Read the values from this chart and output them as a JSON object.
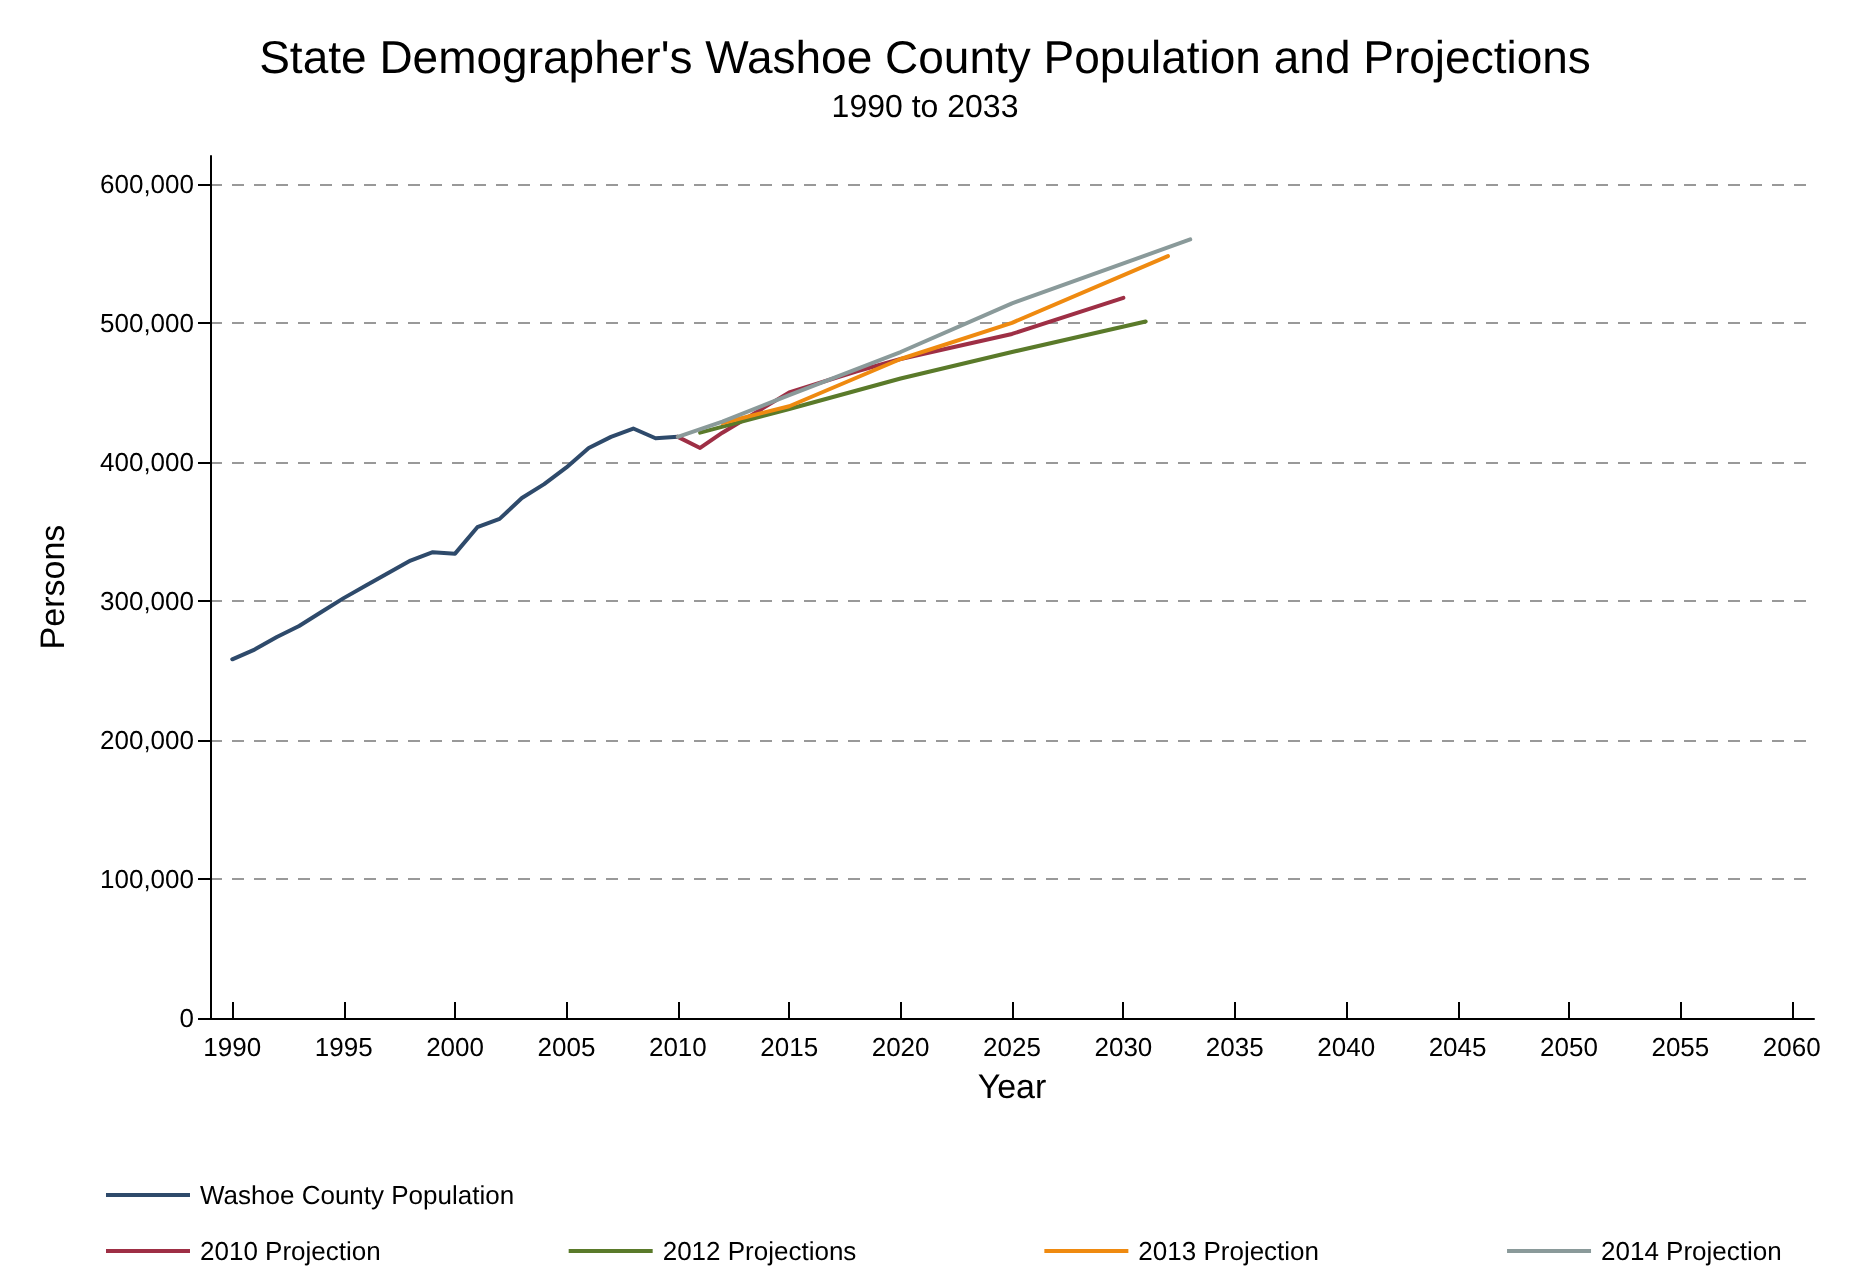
{
  "chart_data": {
    "type": "line",
    "title": "State Demographer's Washoe County Population and Projections",
    "subtitle": "1990 to 2033",
    "xlabel": "Year",
    "ylabel": "Persons",
    "xlim": [
      1989,
      2061
    ],
    "xticks": [
      1990,
      1995,
      2000,
      2005,
      2010,
      2015,
      2020,
      2025,
      2030,
      2035,
      2040,
      2045,
      2050,
      2055,
      2060
    ],
    "ylim": [
      0,
      620000
    ],
    "yticks": [
      {
        "value": 0,
        "label": "0"
      },
      {
        "value": 100000,
        "label": "100,000"
      },
      {
        "value": 200000,
        "label": "200,000"
      },
      {
        "value": 300000,
        "label": "300,000"
      },
      {
        "value": 400000,
        "label": "400,000"
      },
      {
        "value": 500000,
        "label": "500,000"
      },
      {
        "value": 600000,
        "label": "600,000"
      }
    ],
    "grid": "y",
    "legend": "bottom",
    "marker": "none",
    "line_style": "solid",
    "series": [
      {
        "name": "Washoe County Population",
        "color": "#2e4a6b",
        "x": [
          1990,
          1991,
          1992,
          1993,
          1994,
          1995,
          1996,
          1997,
          1998,
          1999,
          2000,
          2001,
          2002,
          2003,
          2004,
          2005,
          2006,
          2007,
          2008,
          2009,
          2010
        ],
        "values": [
          258000,
          265000,
          274000,
          282000,
          292000,
          302000,
          311000,
          320000,
          329000,
          335000,
          334000,
          353000,
          359000,
          374000,
          384000,
          396000,
          410000,
          418000,
          424000,
          417000,
          418000
        ]
      },
      {
        "name": "2010 Projection",
        "color": "#9e2f45",
        "x": [
          2010,
          2011,
          2012,
          2015,
          2018,
          2020,
          2025,
          2030
        ],
        "values": [
          418000,
          410000,
          421000,
          450000,
          465000,
          474000,
          492000,
          518000
        ]
      },
      {
        "name": "2012 Projections",
        "color": "#5a7a2a",
        "x": [
          2011,
          2015,
          2020,
          2025,
          2031
        ],
        "values": [
          421000,
          438000,
          460000,
          479000,
          501000
        ]
      },
      {
        "name": "2013 Projection",
        "color": "#ef8a10",
        "x": [
          2012,
          2015,
          2020,
          2025,
          2032
        ],
        "values": [
          428000,
          440000,
          474000,
          500000,
          548000
        ]
      },
      {
        "name": "2014 Projection",
        "color": "#8a9a9a",
        "x": [
          2010,
          2012,
          2015,
          2020,
          2025,
          2033
        ],
        "values": [
          418000,
          429000,
          448000,
          479000,
          514000,
          560000
        ]
      }
    ]
  }
}
